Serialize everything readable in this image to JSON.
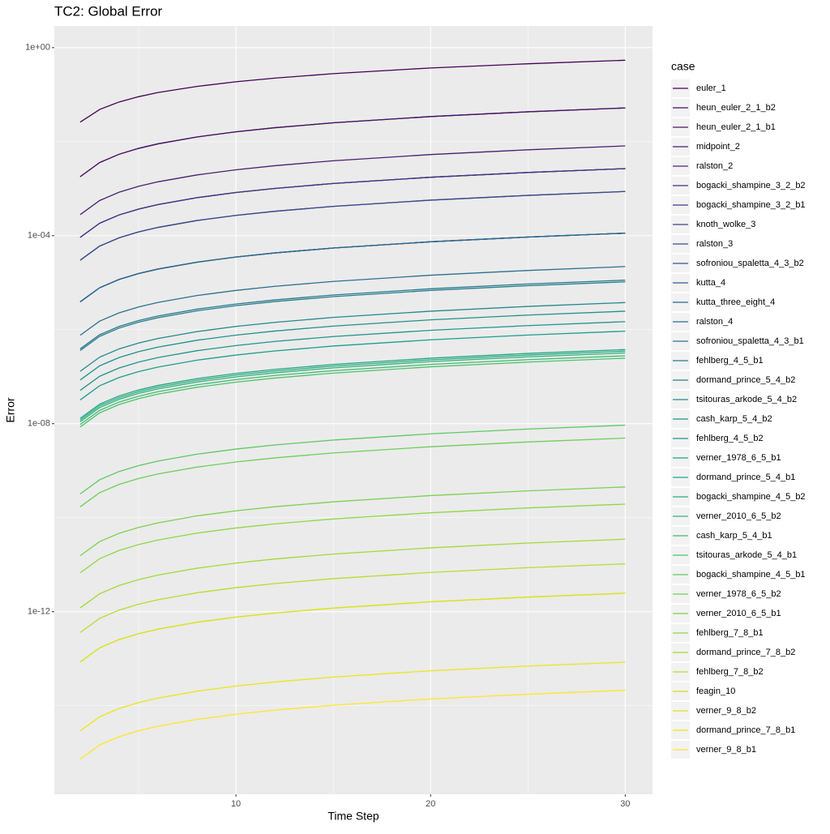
{
  "chart_data": {
    "type": "line",
    "title": "TC2: Global Error",
    "x_label": "Time Step",
    "y_label": "Error",
    "legend_title": "case",
    "legend_position": "right",
    "log_y": true,
    "grid": true,
    "x": [
      2,
      3,
      4,
      5,
      6,
      8,
      10,
      12,
      15,
      20,
      25,
      30
    ],
    "xlim": [
      0.67,
      31.4
    ],
    "xticks": [
      10,
      20,
      30
    ],
    "ylim": [
      1.3e-16,
      2.9
    ],
    "yticks": [
      {
        "value": 1,
        "label": "1e+00"
      },
      {
        "value": 0.0001,
        "label": "1e-04"
      },
      {
        "value": 1e-08,
        "label": "1e-08"
      },
      {
        "value": 1e-12,
        "label": "1e-12"
      }
    ],
    "series": [
      {
        "name": "euler_1",
        "color": "#440154",
        "values": [
          0.026,
          0.0485,
          0.0699,
          0.0905,
          0.111,
          0.15,
          0.188,
          0.225,
          0.28,
          0.37,
          0.454,
          0.54
        ]
      },
      {
        "name": "heun_euler_2_1_b2",
        "color": "#460b5e",
        "values": [
          0.0018,
          0.0036,
          0.0054,
          0.0072,
          0.009,
          0.0126,
          0.0162,
          0.0198,
          0.0252,
          0.0342,
          0.0432,
          0.0522
        ]
      },
      {
        "name": "heun_euler_2_1_b1",
        "color": "#471567",
        "values": [
          0.0018,
          0.0036,
          0.0054,
          0.0072,
          0.009,
          0.0126,
          0.0162,
          0.0198,
          0.0252,
          0.0342,
          0.0432,
          0.0522
        ]
      },
      {
        "name": "midpoint_2",
        "color": "#481f70",
        "values": [
          0.00028,
          0.00056,
          0.00084,
          0.00112,
          0.0014,
          0.00196,
          0.00252,
          0.00308,
          0.00392,
          0.00532,
          0.00672,
          0.00812
        ]
      },
      {
        "name": "ralston_2",
        "color": "#482677",
        "values": [
          9.2e-05,
          0.000184,
          0.000276,
          0.000368,
          0.00046,
          0.000644,
          0.000828,
          0.00101,
          0.00129,
          0.00175,
          0.00221,
          0.00267
        ]
      },
      {
        "name": "bogacki_shampine_3_2_b2",
        "color": "#46307e",
        "values": [
          9.2e-05,
          0.000184,
          0.000276,
          0.000368,
          0.00046,
          0.000644,
          0.000828,
          0.00101,
          0.00129,
          0.00175,
          0.00221,
          0.00267
        ]
      },
      {
        "name": "bogacki_shampine_3_2_b1",
        "color": "#433a84",
        "values": [
          9.2e-05,
          0.000184,
          0.000276,
          0.000368,
          0.00046,
          0.000644,
          0.000828,
          0.00101,
          0.00129,
          0.00175,
          0.00221,
          0.00267
        ]
      },
      {
        "name": "knoth_wolke_3",
        "color": "#404386",
        "values": [
          3e-05,
          6e-05,
          9e-05,
          0.00012,
          0.00015,
          0.00021,
          0.00027,
          0.00033,
          0.00042,
          0.00057,
          0.00072,
          0.00087
        ]
      },
      {
        "name": "ralston_3",
        "color": "#3c4b8a",
        "values": [
          3e-05,
          6e-05,
          9e-05,
          0.00012,
          0.00015,
          0.00021,
          0.00027,
          0.00033,
          0.00042,
          0.00057,
          0.00072,
          0.00087
        ]
      },
      {
        "name": "sofroniou_spaletta_4_3_b2",
        "color": "#38538c",
        "values": [
          3.9e-06,
          7.8e-06,
          1.17e-05,
          1.56e-05,
          1.95e-05,
          2.73e-05,
          3.51e-05,
          4.29e-05,
          5.46e-05,
          7.41e-05,
          9.36e-05,
          0.000113
        ]
      },
      {
        "name": "kutta_4",
        "color": "#355a8d",
        "values": [
          3.9e-06,
          7.8e-06,
          1.17e-05,
          1.56e-05,
          1.95e-05,
          2.73e-05,
          3.51e-05,
          4.29e-05,
          5.46e-05,
          7.41e-05,
          9.36e-05,
          0.000113
        ]
      },
      {
        "name": "kutta_three_eight_4",
        "color": "#32628d",
        "values": [
          3.9e-06,
          7.8e-06,
          1.17e-05,
          1.56e-05,
          1.95e-05,
          2.73e-05,
          3.51e-05,
          4.29e-05,
          5.46e-05,
          7.41e-05,
          9.36e-05,
          0.000113
        ]
      },
      {
        "name": "ralston_4",
        "color": "#2f698e",
        "values": [
          3.9e-06,
          7.8e-06,
          1.17e-05,
          1.56e-05,
          1.95e-05,
          2.73e-05,
          3.51e-05,
          4.29e-05,
          5.46e-05,
          7.41e-05,
          9.36e-05,
          0.000113
        ]
      },
      {
        "name": "sofroniou_spaletta_4_3_b1",
        "color": "#2c718e",
        "values": [
          7.6e-07,
          1.52e-06,
          2.28e-06,
          3.04e-06,
          3.8e-06,
          5.32e-06,
          6.84e-06,
          8.36e-06,
          1.06e-05,
          1.44e-05,
          1.82e-05,
          2.2e-05
        ]
      },
      {
        "name": "fehlberg_4_5_b1",
        "color": "#29788e",
        "values": [
          3.9e-07,
          7.8e-07,
          1.17e-06,
          1.56e-06,
          1.95e-06,
          2.73e-06,
          3.51e-06,
          4.29e-06,
          5.46e-06,
          7.41e-06,
          9.36e-06,
          1.13e-05
        ]
      },
      {
        "name": "dormand_prince_5_4_b2",
        "color": "#267f8e",
        "values": [
          3.6e-07,
          7.2e-07,
          1.08e-06,
          1.44e-06,
          1.8e-06,
          2.52e-06,
          3.24e-06,
          3.96e-06,
          5.04e-06,
          6.84e-06,
          8.64e-06,
          1.04e-05
        ]
      },
      {
        "name": "tsitouras_arkode_5_4_b2",
        "color": "#23888d",
        "values": [
          1.3e-07,
          2.6e-07,
          3.9e-07,
          5.2e-07,
          6.5e-07,
          9.1e-07,
          1.17e-06,
          1.43e-06,
          1.82e-06,
          2.47e-06,
          3.12e-06,
          3.77e-06
        ]
      },
      {
        "name": "cash_karp_5_4_b2",
        "color": "#21918c",
        "values": [
          8.5e-08,
          1.7e-07,
          2.55e-07,
          3.4e-07,
          4.25e-07,
          5.95e-07,
          7.65e-07,
          9.35e-07,
          1.19e-06,
          1.62e-06,
          2.04e-06,
          2.47e-06
        ]
      },
      {
        "name": "fehlberg_4_5_b2",
        "color": "#1f968b",
        "values": [
          5.1e-08,
          1.02e-07,
          1.53e-07,
          2.04e-07,
          2.55e-07,
          3.57e-07,
          4.59e-07,
          5.61e-07,
          7.14e-07,
          9.69e-07,
          1.22e-06,
          1.48e-06
        ]
      },
      {
        "name": "verner_1978_6_5_b1",
        "color": "#1f9e89",
        "values": [
          3.2e-08,
          6.4e-08,
          9.6e-08,
          1.28e-07,
          1.6e-07,
          2.24e-07,
          2.88e-07,
          3.52e-07,
          4.48e-07,
          6.08e-07,
          7.68e-07,
          9.28e-07
        ]
      },
      {
        "name": "dormand_prince_5_4_b1",
        "color": "#22a585",
        "values": [
          1.3e-08,
          2.6e-08,
          3.9e-08,
          5.2e-08,
          6.5e-08,
          9.1e-08,
          1.17e-07,
          1.43e-07,
          1.82e-07,
          2.47e-07,
          3.12e-07,
          3.77e-07
        ]
      },
      {
        "name": "bogacki_shampine_4_5_b2",
        "color": "#2aac80",
        "values": [
          1.2e-08,
          2.4e-08,
          3.6e-08,
          4.8e-08,
          6e-08,
          8.4e-08,
          1.08e-07,
          1.32e-07,
          1.68e-07,
          2.28e-07,
          2.88e-07,
          3.48e-07
        ]
      },
      {
        "name": "verner_2010_6_5_b2",
        "color": "#34b379",
        "values": [
          1.1e-08,
          2.2e-08,
          3.3e-08,
          4.4e-08,
          5.5e-08,
          7.7e-08,
          9.9e-08,
          1.21e-07,
          1.54e-07,
          2.09e-07,
          2.64e-07,
          3.19e-07
        ]
      },
      {
        "name": "cash_karp_5_4_b1",
        "color": "#40bd72",
        "values": [
          9.6e-09,
          1.92e-08,
          2.88e-08,
          3.84e-08,
          4.8e-08,
          6.72e-08,
          8.64e-08,
          1.06e-07,
          1.34e-07,
          1.82e-07,
          2.3e-07,
          2.78e-07
        ]
      },
      {
        "name": "tsitouras_arkode_5_4_b1",
        "color": "#4dc26b",
        "values": [
          8.5e-09,
          1.7e-08,
          2.55e-08,
          3.4e-08,
          4.25e-08,
          5.95e-08,
          7.65e-08,
          9.35e-08,
          1.19e-07,
          1.62e-07,
          2.04e-07,
          2.47e-07
        ]
      },
      {
        "name": "bogacki_shampine_4_5_b1",
        "color": "#5ec962",
        "values": [
          3.2e-10,
          6.4e-10,
          9.6e-10,
          1.28e-09,
          1.6e-09,
          2.24e-09,
          2.88e-09,
          3.52e-09,
          4.48e-09,
          6.08e-09,
          7.68e-09,
          9.28e-09
        ]
      },
      {
        "name": "verner_1978_6_5_b2",
        "color": "#6ece58",
        "values": [
          1.7e-10,
          3.4e-10,
          5.1e-10,
          6.8e-10,
          8.5e-10,
          1.19e-09,
          1.53e-09,
          1.87e-09,
          2.38e-09,
          3.23e-09,
          4.08e-09,
          4.93e-09
        ]
      },
      {
        "name": "verner_2010_6_5_b1",
        "color": "#7ad151",
        "values": [
          1.55e-11,
          3.1e-11,
          4.65e-11,
          6.2e-11,
          7.75e-11,
          1.09e-10,
          1.4e-10,
          1.71e-10,
          2.17e-10,
          2.95e-10,
          3.72e-10,
          4.5e-10
        ]
      },
      {
        "name": "fehlberg_7_8_b1",
        "color": "#8fd744",
        "values": [
          6.7e-12,
          1.34e-11,
          2.01e-11,
          2.68e-11,
          3.35e-11,
          4.69e-11,
          6.03e-11,
          7.37e-11,
          9.38e-11,
          1.27e-10,
          1.61e-10,
          1.94e-10
        ]
      },
      {
        "name": "dormand_prince_7_8_b2",
        "color": "#a2da37",
        "values": [
          1.2e-12,
          2.4e-12,
          3.6e-12,
          4.8e-12,
          6e-12,
          8.4e-12,
          1.08e-11,
          1.32e-11,
          1.68e-11,
          2.28e-11,
          2.88e-11,
          3.48e-11
        ]
      },
      {
        "name": "fehlberg_7_8_b2",
        "color": "#b5de2b",
        "values": [
          3.6e-13,
          7.2e-13,
          1.08e-12,
          1.44e-12,
          1.8e-12,
          2.52e-12,
          3.24e-12,
          3.96e-12,
          5.04e-12,
          6.84e-12,
          8.64e-12,
          1.04e-11
        ]
      },
      {
        "name": "feagin_10",
        "color": "#c8e020",
        "values": [
          8.5e-14,
          1.7e-13,
          2.55e-13,
          3.4e-13,
          4.25e-13,
          5.95e-13,
          7.65e-13,
          9.35e-13,
          1.19e-12,
          1.62e-12,
          2.04e-12,
          2.47e-12
        ]
      },
      {
        "name": "verner_9_8_b2",
        "color": "#dae319",
        "values": [
          8.5e-14,
          1.7e-13,
          2.55e-13,
          3.4e-13,
          4.25e-13,
          5.95e-13,
          7.65e-13,
          9.35e-13,
          1.19e-12,
          1.62e-12,
          2.04e-12,
          2.47e-12
        ]
      },
      {
        "name": "dormand_prince_7_8_b1",
        "color": "#ebe51b",
        "values": [
          2.9e-15,
          5.8e-15,
          8.7e-15,
          1.16e-14,
          1.45e-14,
          2.03e-14,
          2.61e-14,
          3.19e-14,
          4.06e-14,
          5.51e-14,
          6.96e-14,
          8.41e-14
        ]
      },
      {
        "name": "verner_9_8_b1",
        "color": "#fde725",
        "values": [
          7.3e-16,
          1.46e-15,
          2.19e-15,
          2.92e-15,
          3.65e-15,
          5.11e-15,
          6.57e-15,
          8.03e-15,
          1.02e-14,
          1.39e-14,
          1.75e-14,
          2.12e-14
        ]
      }
    ]
  }
}
